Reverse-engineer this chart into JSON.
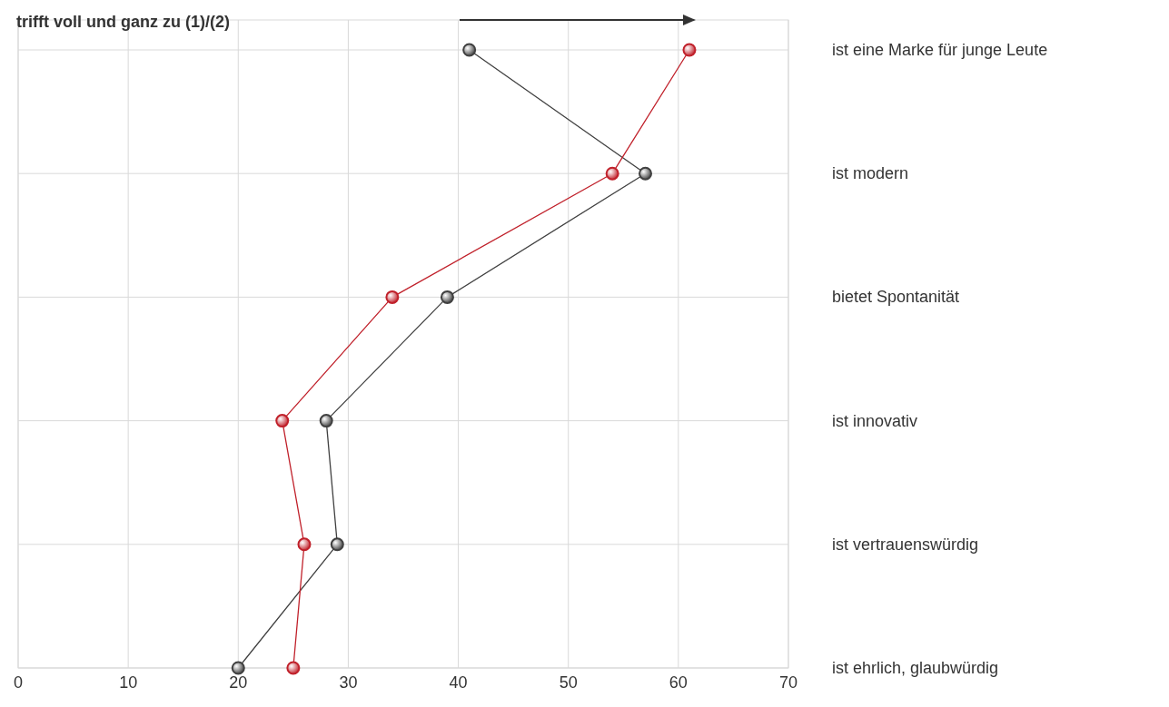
{
  "chart_data": {
    "type": "line",
    "orientation": "horizontal",
    "title": "trifft voll und ganz zu (1)/(2)",
    "categories": [
      "ist eine Marke für junge Leute",
      "ist modern",
      "bietet Spontanität",
      "ist innovativ",
      "ist vertrauenswürdig",
      "ist ehrlich, glaubwürdig"
    ],
    "series": [
      {
        "color": "#404040",
        "values": [
          41,
          57,
          39,
          28,
          29,
          20
        ]
      },
      {
        "color": "#c0202a",
        "values": [
          61,
          54,
          34,
          24,
          26,
          25
        ]
      }
    ],
    "xlim": [
      0,
      70
    ],
    "xticks": [
      0,
      10,
      20,
      30,
      40,
      50,
      60,
      70
    ],
    "grid": true,
    "marker": "circle",
    "line_style": "solid"
  }
}
